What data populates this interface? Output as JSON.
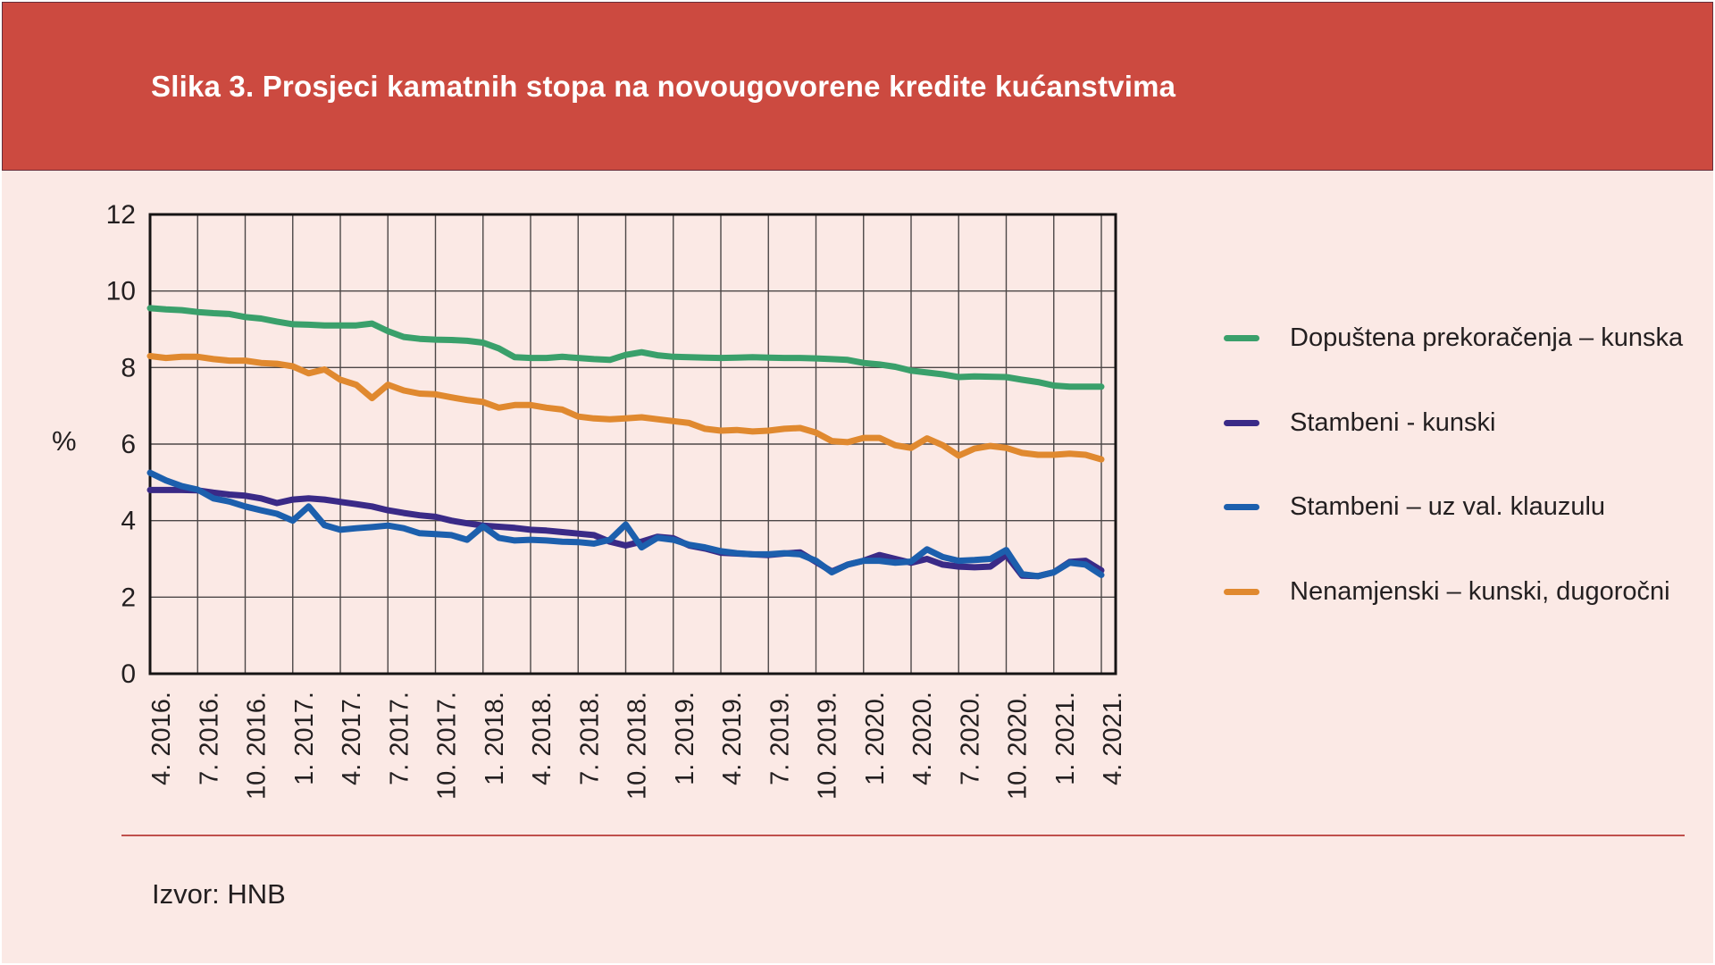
{
  "header": {
    "title": "Slika 3. Prosjeci kamatnih stopa na novougovorene kredite kućanstvima",
    "bg_color": "#cc4a40",
    "text_color": "#ffffff"
  },
  "source": {
    "label": "Izvor: HNB"
  },
  "colors": {
    "page_background": "#fbe9e5",
    "grid_line": "#4c4747",
    "plot_border": "#161414",
    "text": "#231f20",
    "source_rule": "#c0504d"
  },
  "chart_data": {
    "type": "line",
    "title": "Slika 3. Prosjeci kamatnih stopa na novougovorene kredite kućanstvima",
    "xlabel": "",
    "ylabel": "%",
    "ylim": [
      0,
      12
    ],
    "y_ticks": [
      0,
      2,
      4,
      6,
      8,
      10,
      12
    ],
    "grid": true,
    "legend_position": "right",
    "x_frequency": "monthly",
    "x_range": "4. 2016. – 4. 2021.",
    "x_ticks_every_months": 3,
    "x_tick_labels": [
      "4. 2016.",
      "7. 2016.",
      "10. 2016.",
      "1. 2017.",
      "4. 2017.",
      "7. 2017.",
      "10. 2017.",
      "1. 2018.",
      "4. 2018.",
      "7. 2018.",
      "10. 2018.",
      "1. 2019.",
      "4. 2019.",
      "7. 2019.",
      "10. 2019.",
      "1. 2020.",
      "4. 2020.",
      "7. 2020.",
      "10. 2020.",
      "1. 2021.",
      "4. 2021."
    ],
    "series": [
      {
        "name": "Dopuštena prekoračenja – kunska",
        "color": "#3aa06b",
        "values": [
          9.55,
          9.52,
          9.5,
          9.45,
          9.42,
          9.4,
          9.32,
          9.28,
          9.2,
          9.13,
          9.12,
          9.1,
          9.1,
          9.1,
          9.15,
          8.95,
          8.8,
          8.75,
          8.73,
          8.72,
          8.7,
          8.65,
          8.5,
          8.27,
          8.25,
          8.25,
          8.28,
          8.25,
          8.22,
          8.2,
          8.33,
          8.4,
          8.32,
          8.28,
          8.27,
          8.26,
          8.25,
          8.26,
          8.27,
          8.26,
          8.25,
          8.25,
          8.24,
          8.22,
          8.2,
          8.12,
          8.08,
          8.02,
          7.92,
          7.87,
          7.82,
          7.75,
          7.77,
          7.76,
          7.75,
          7.68,
          7.62,
          7.53,
          7.5,
          7.5,
          7.5
        ]
      },
      {
        "name": "Stambeni - kunski",
        "color": "#3a2a87",
        "values": [
          4.8,
          4.8,
          4.8,
          4.79,
          4.73,
          4.68,
          4.65,
          4.58,
          4.46,
          4.55,
          4.58,
          4.55,
          4.49,
          4.43,
          4.37,
          4.27,
          4.2,
          4.14,
          4.1,
          4.0,
          3.93,
          3.87,
          3.84,
          3.81,
          3.76,
          3.74,
          3.7,
          3.66,
          3.62,
          3.45,
          3.35,
          3.45,
          3.58,
          3.54,
          3.35,
          3.27,
          3.16,
          3.14,
          3.12,
          3.1,
          3.14,
          3.17,
          2.92,
          2.67,
          2.85,
          2.95,
          3.1,
          3.0,
          2.9,
          3.0,
          2.85,
          2.8,
          2.78,
          2.8,
          3.1,
          2.56,
          2.55,
          2.65,
          2.92,
          2.95,
          2.7
        ]
      },
      {
        "name": "Stambeni – uz val. klauzulu",
        "color": "#1c5fad",
        "values": [
          5.25,
          5.05,
          4.9,
          4.81,
          4.58,
          4.5,
          4.37,
          4.27,
          4.18,
          4.0,
          4.37,
          3.88,
          3.76,
          3.8,
          3.83,
          3.87,
          3.8,
          3.67,
          3.65,
          3.62,
          3.5,
          3.85,
          3.55,
          3.48,
          3.5,
          3.48,
          3.45,
          3.44,
          3.4,
          3.5,
          3.9,
          3.3,
          3.55,
          3.5,
          3.37,
          3.3,
          3.2,
          3.15,
          3.12,
          3.12,
          3.15,
          3.12,
          2.95,
          2.65,
          2.85,
          2.95,
          2.95,
          2.9,
          2.93,
          3.25,
          3.05,
          2.95,
          2.97,
          3.0,
          3.23,
          2.6,
          2.55,
          2.65,
          2.9,
          2.85,
          2.58
        ]
      },
      {
        "name": "Nenamjenski – kunski, dugoročni",
        "color": "#e0892f",
        "values": [
          8.3,
          8.25,
          8.28,
          8.28,
          8.22,
          8.18,
          8.18,
          8.12,
          8.1,
          8.03,
          7.85,
          7.95,
          7.68,
          7.55,
          7.2,
          7.55,
          7.4,
          7.32,
          7.3,
          7.22,
          7.15,
          7.1,
          6.95,
          7.02,
          7.02,
          6.95,
          6.9,
          6.72,
          6.67,
          6.65,
          6.67,
          6.7,
          6.65,
          6.6,
          6.55,
          6.4,
          6.35,
          6.37,
          6.33,
          6.35,
          6.4,
          6.42,
          6.3,
          6.08,
          6.05,
          6.16,
          6.16,
          5.97,
          5.9,
          6.15,
          5.97,
          5.7,
          5.88,
          5.95,
          5.9,
          5.77,
          5.72,
          5.72,
          5.75,
          5.72,
          5.6
        ]
      }
    ]
  }
}
